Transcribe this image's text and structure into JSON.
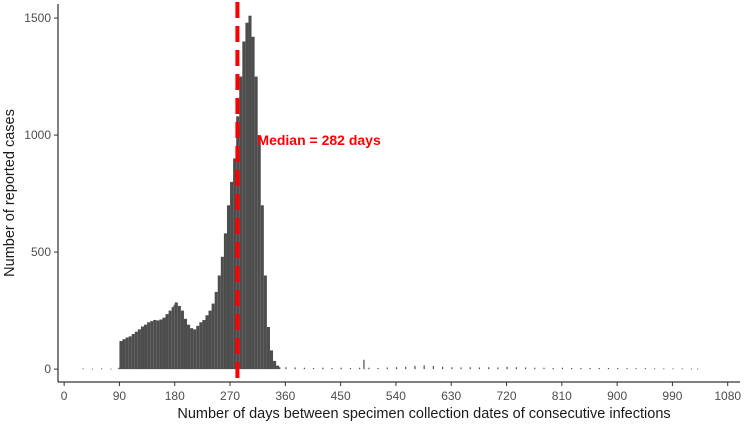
{
  "chart_data": {
    "type": "bar",
    "xlabel": "Number of days between specimen collection dates of consecutive infections",
    "ylabel": "Number of reported cases",
    "xlim": [
      -10,
      1100
    ],
    "ylim": [
      -55,
      1560
    ],
    "x_ticks": [
      "0",
      "90",
      "180",
      "270",
      "360",
      "450",
      "540",
      "630",
      "720",
      "810",
      "900",
      "990",
      "1080"
    ],
    "y_ticks": [
      "0",
      "500",
      "1000",
      "1500"
    ],
    "bar_color": "#4d4d4d",
    "grid": false,
    "series": [
      {
        "values": [
          [
            30,
            3
          ],
          [
            45,
            2
          ],
          [
            60,
            3
          ],
          [
            75,
            2
          ],
          [
            88,
            6
          ],
          [
            90,
            120
          ],
          [
            95,
            128
          ],
          [
            100,
            135
          ],
          [
            105,
            140
          ],
          [
            110,
            150
          ],
          [
            115,
            160
          ],
          [
            120,
            170
          ],
          [
            125,
            182
          ],
          [
            130,
            190
          ],
          [
            135,
            200
          ],
          [
            140,
            205
          ],
          [
            145,
            210
          ],
          [
            150,
            208
          ],
          [
            155,
            212
          ],
          [
            160,
            220
          ],
          [
            165,
            235
          ],
          [
            170,
            250
          ],
          [
            175,
            265
          ],
          [
            178,
            275
          ],
          [
            180,
            285
          ],
          [
            185,
            270
          ],
          [
            190,
            250
          ],
          [
            195,
            215
          ],
          [
            200,
            190
          ],
          [
            205,
            175
          ],
          [
            210,
            170
          ],
          [
            215,
            185
          ],
          [
            220,
            200
          ],
          [
            225,
            210
          ],
          [
            230,
            230
          ],
          [
            235,
            250
          ],
          [
            240,
            280
          ],
          [
            245,
            330
          ],
          [
            250,
            400
          ],
          [
            255,
            480
          ],
          [
            260,
            580
          ],
          [
            265,
            700
          ],
          [
            270,
            800
          ],
          [
            275,
            900
          ],
          [
            280,
            1080
          ],
          [
            285,
            1250
          ],
          [
            290,
            1400
          ],
          [
            295,
            1480
          ],
          [
            300,
            1510
          ],
          [
            305,
            1420
          ],
          [
            310,
            1250
          ],
          [
            315,
            1000
          ],
          [
            320,
            700
          ],
          [
            325,
            400
          ],
          [
            330,
            180
          ],
          [
            335,
            80
          ],
          [
            340,
            35
          ],
          [
            345,
            15
          ],
          [
            350,
            8
          ],
          [
            360,
            8
          ],
          [
            375,
            7
          ],
          [
            390,
            6
          ],
          [
            405,
            5
          ],
          [
            420,
            6
          ],
          [
            435,
            5
          ],
          [
            450,
            6
          ],
          [
            465,
            5
          ],
          [
            480,
            6
          ],
          [
            487,
            40
          ],
          [
            495,
            6
          ],
          [
            510,
            5
          ],
          [
            525,
            7
          ],
          [
            540,
            8
          ],
          [
            555,
            10
          ],
          [
            570,
            14
          ],
          [
            585,
            16
          ],
          [
            600,
            13
          ],
          [
            615,
            10
          ],
          [
            630,
            8
          ],
          [
            645,
            7
          ],
          [
            660,
            8
          ],
          [
            675,
            7
          ],
          [
            690,
            8
          ],
          [
            705,
            7
          ],
          [
            720,
            10
          ],
          [
            735,
            8
          ],
          [
            750,
            7
          ],
          [
            765,
            6
          ],
          [
            780,
            6
          ],
          [
            795,
            5
          ],
          [
            810,
            6
          ],
          [
            825,
            5
          ],
          [
            840,
            5
          ],
          [
            855,
            5
          ],
          [
            870,
            5
          ],
          [
            885,
            5
          ],
          [
            900,
            5
          ],
          [
            915,
            4
          ],
          [
            930,
            4
          ],
          [
            945,
            4
          ],
          [
            960,
            3
          ],
          [
            975,
            3
          ],
          [
            990,
            3
          ],
          [
            1005,
            3
          ],
          [
            1020,
            2
          ],
          [
            1030,
            2
          ]
        ]
      }
    ],
    "annotations": [
      {
        "label": "Median = 282 days",
        "x": 282,
        "y": 980,
        "color": "#ff0000",
        "line_style": "dashed"
      }
    ]
  }
}
